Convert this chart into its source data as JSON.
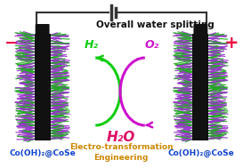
{
  "title": "Overall water splitting",
  "subtitle_line1": "Electro-transformation",
  "subtitle_line2": "Engineering",
  "label_left": "Co(OH)₂@CoSe",
  "label_right": "Co(OH)₂@CoSe",
  "minus_sign": "−",
  "plus_sign": "+",
  "h2_label": "H₂",
  "o2_label": "O₂",
  "h2o_label": "H₂O",
  "bg_color": "#ffffff",
  "title_color": "#111111",
  "h2_color": "#11cc11",
  "o2_color": "#cc11cc",
  "h2o_color": "#dd1166",
  "label_color": "#1144cc",
  "center_text_color": "#cc8800",
  "wire_color": "#333333",
  "sign_color": "#ee1144",
  "purple": "#9933cc",
  "green_bristle": "#22aa22",
  "black_core": "#111111"
}
